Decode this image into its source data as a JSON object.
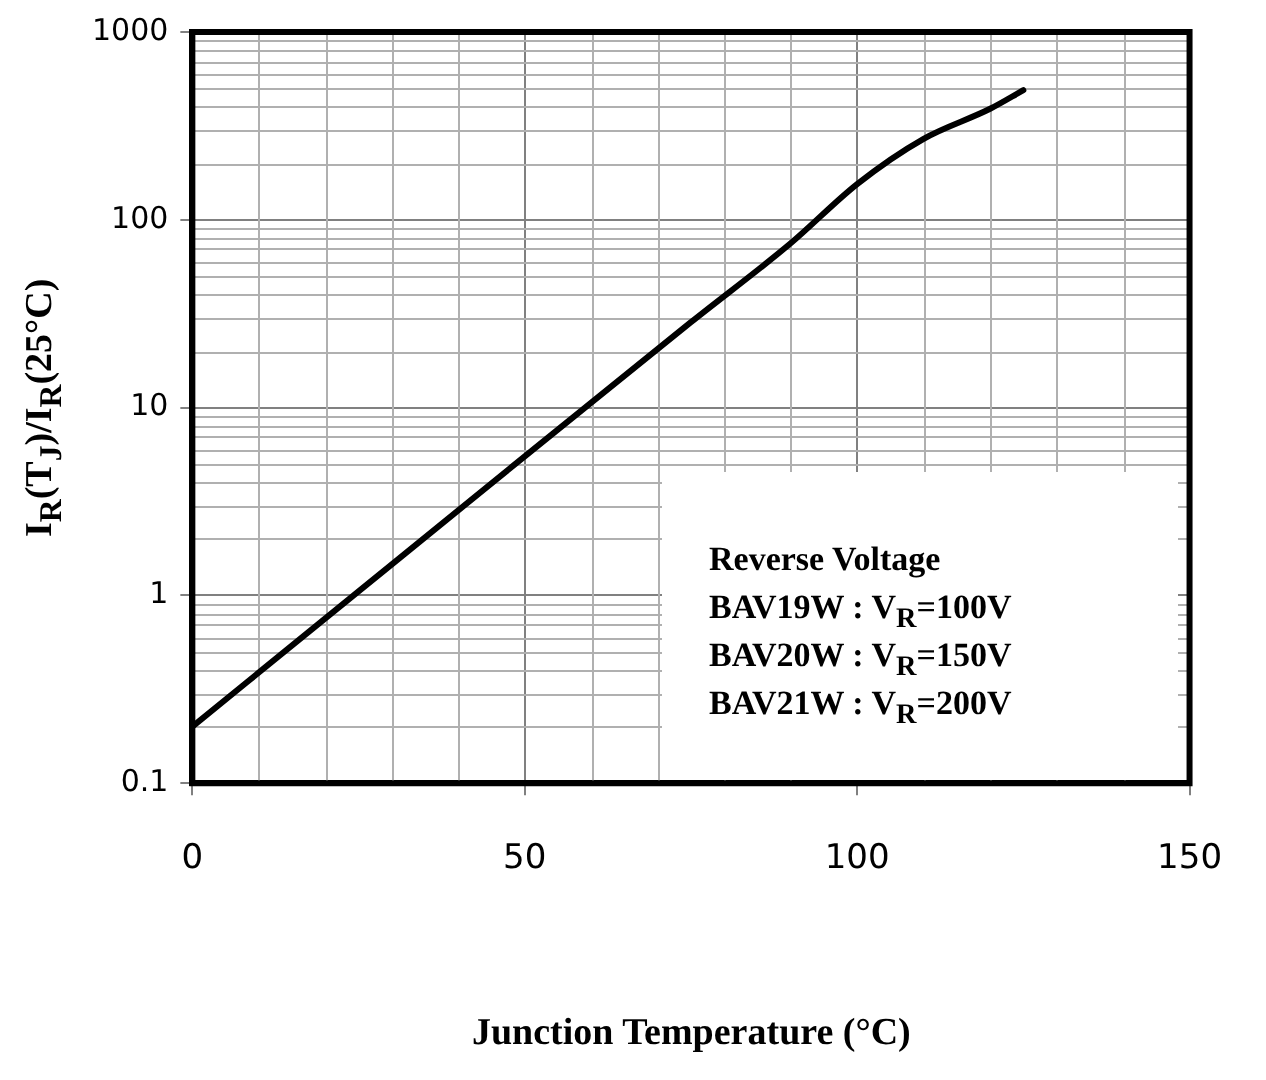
{
  "chart_data": {
    "type": "line",
    "xlabel": "Junction Temperature (°C)",
    "ylabel": "I$_{R}$(T$_{J}$)/I$_{R}$(25°C)",
    "x": [
      0,
      25,
      50,
      75,
      90,
      100,
      110,
      120,
      125
    ],
    "series": [
      {
        "color": "#000000",
        "values": [
          0.2,
          1.05,
          5.5,
          28.5,
          75,
          155,
          270,
          390,
          490
        ]
      }
    ],
    "xlim": [
      0,
      150
    ],
    "xticks": [
      0,
      50,
      100,
      150
    ],
    "ylim": [
      0.1,
      1000
    ],
    "yticks": [
      0.1,
      1,
      10,
      100,
      1000
    ],
    "log": "y",
    "grid": true,
    "legend": false,
    "marker": "none",
    "line_style": "solid",
    "annotations": [
      "Reverse Voltage\nBAV19W : V$_{R}$=100V\nBAV20W : V$_{R}$=150V\nBAV21W : V$_{R}$=200V"
    ]
  }
}
